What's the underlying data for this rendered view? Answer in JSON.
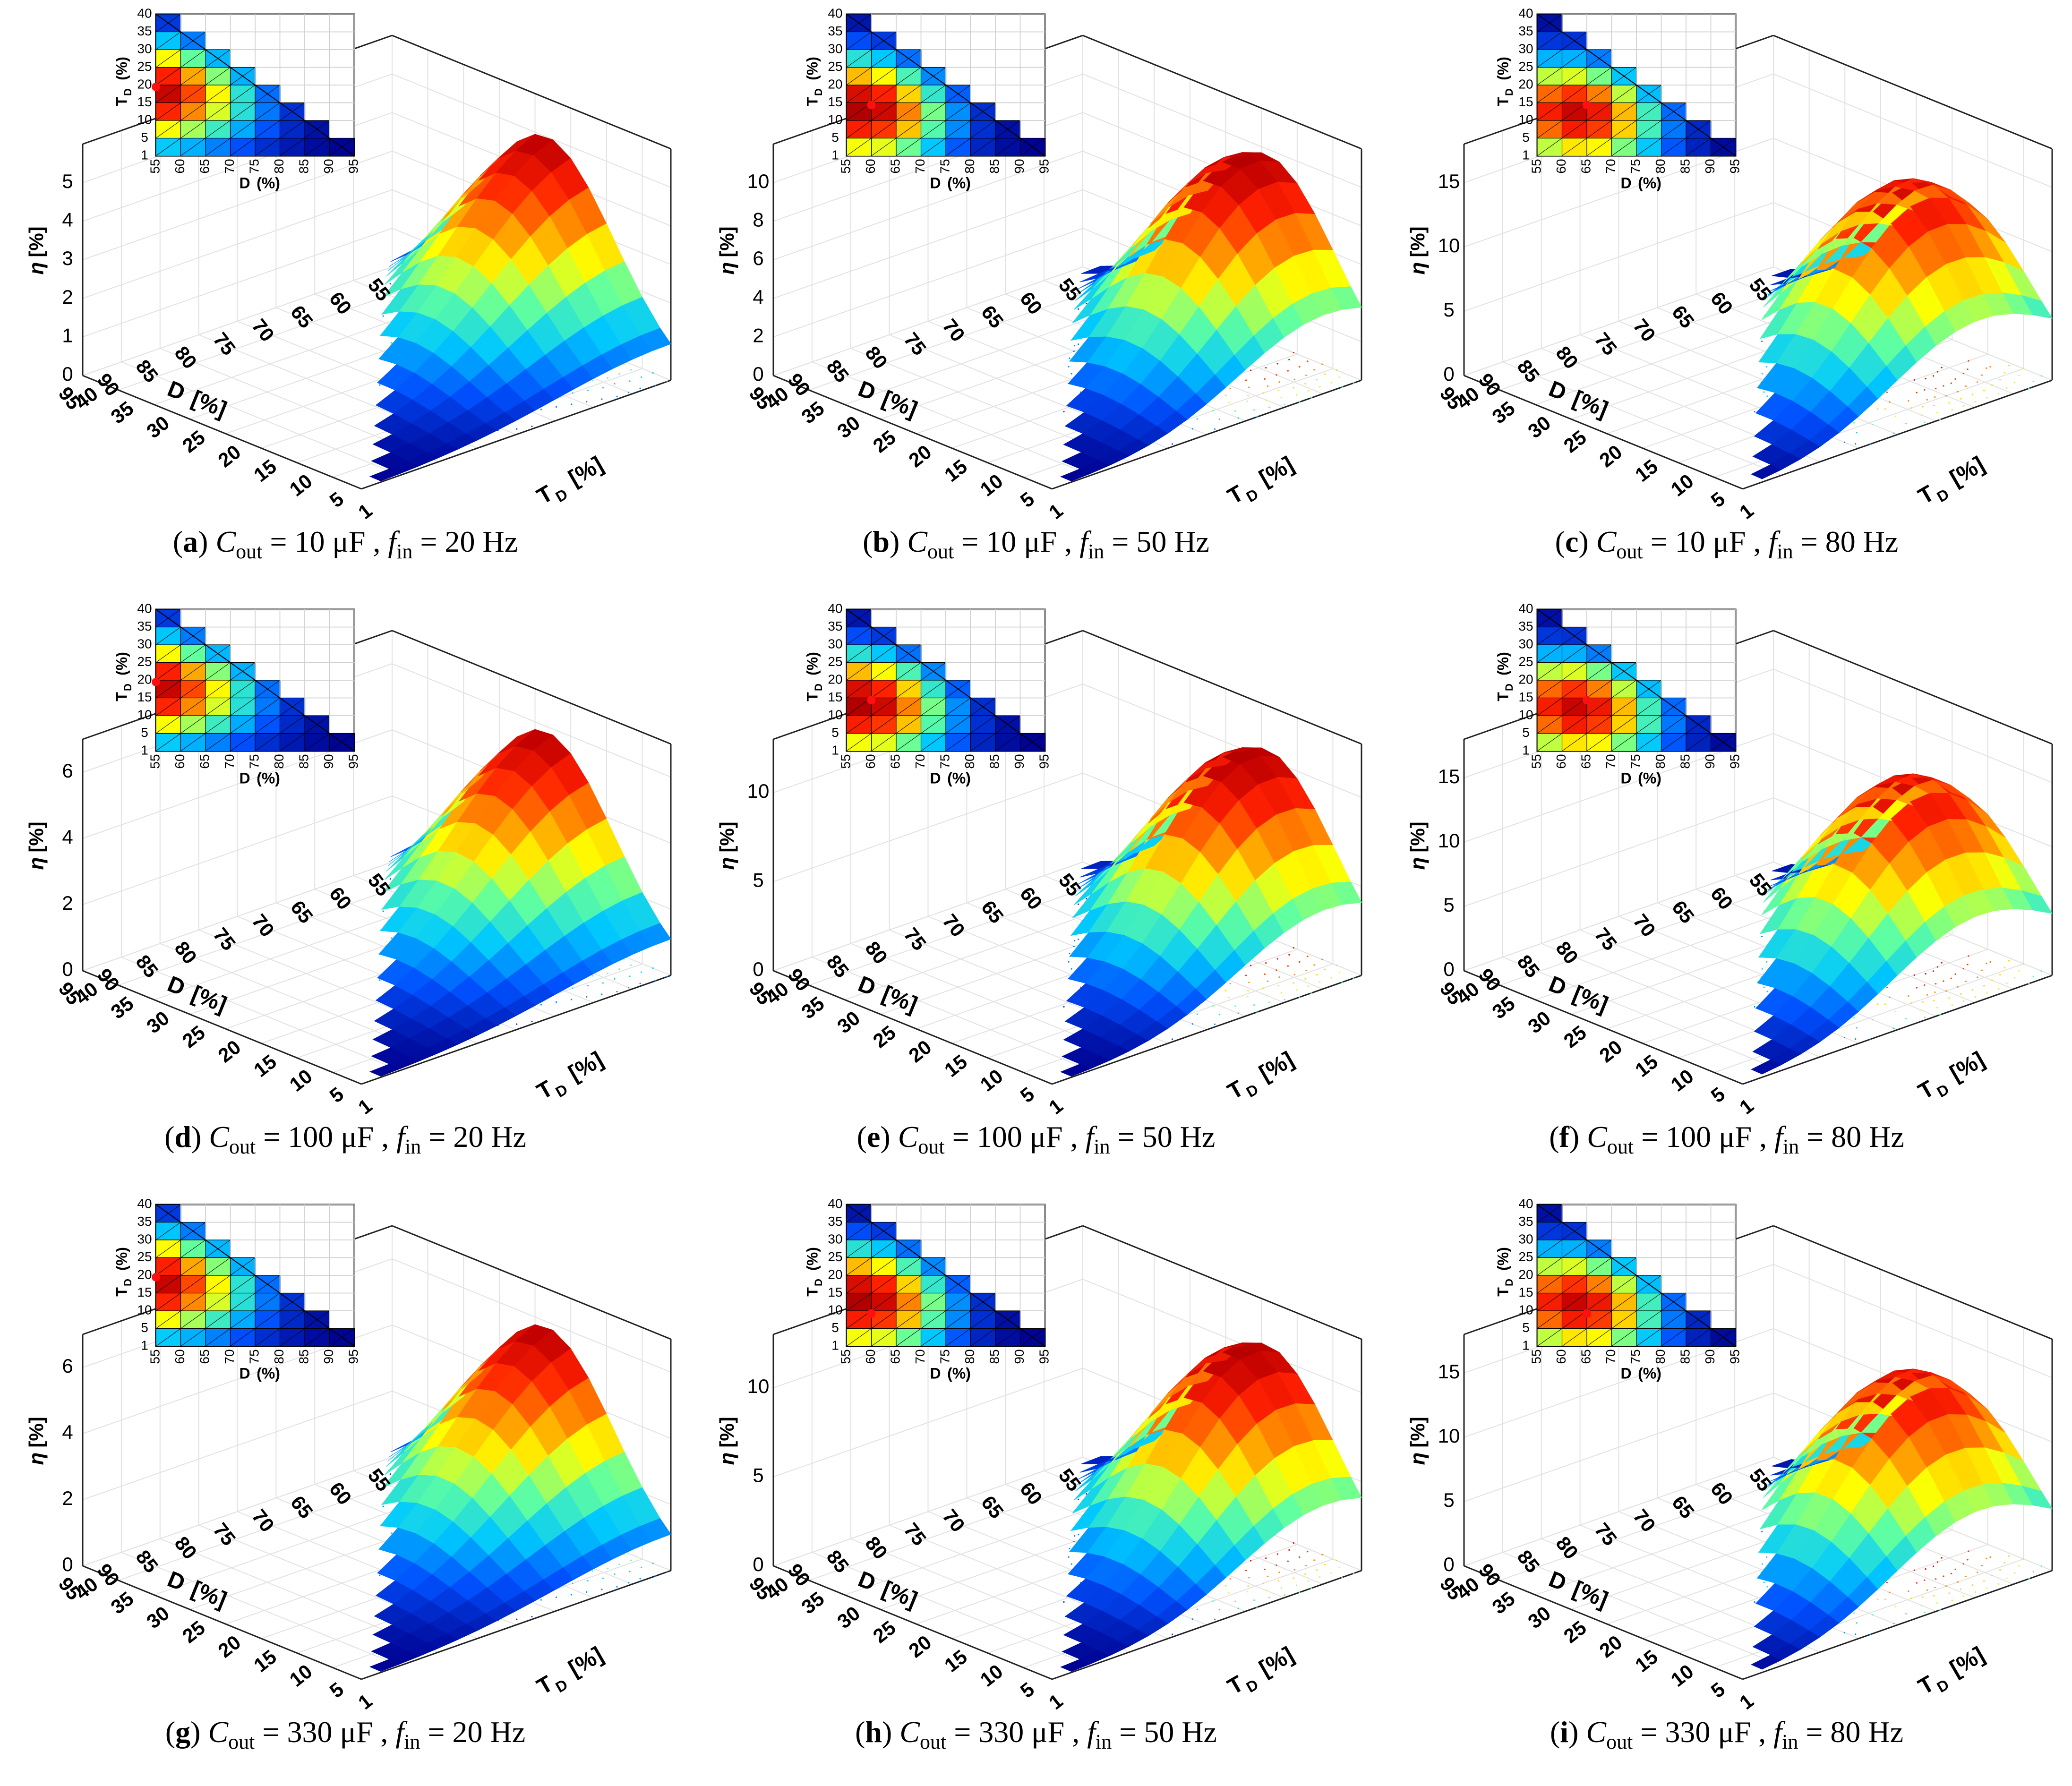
{
  "figure": {
    "common": {
      "x_axis_label": "D",
      "x_axis_unit": "[%]",
      "x_ticks": [
        95,
        90,
        85,
        80,
        75,
        70,
        65,
        60,
        55
      ],
      "y_axis_label": "T",
      "y_axis_sub": "D",
      "y_axis_unit": "[%]",
      "y_ticks": [
        40,
        35,
        30,
        25,
        20,
        15,
        10,
        5,
        1
      ],
      "z_axis_label": "η",
      "z_axis_unit": "[%]",
      "inset_x_label": "D",
      "inset_x_unit": "(%)",
      "inset_y_label": "T",
      "inset_y_sub": "D",
      "inset_y_unit": "(%)",
      "inset_x_ticks": [
        55,
        60,
        65,
        70,
        75,
        80,
        85,
        90,
        95
      ],
      "inset_y_ticks": [
        40,
        35,
        30,
        25,
        20,
        15,
        10,
        5,
        1
      ],
      "colormap": [
        "#00008f",
        "#0050ff",
        "#00c8ff",
        "#60ffa0",
        "#ffff00",
        "#ff9000",
        "#ff2000",
        "#c00000",
        "#800000"
      ],
      "marker_color": "#ff1010"
    }
  },
  "chart_data": [
    {
      "id": "a",
      "type": "surface3d",
      "letter": "a",
      "cout": "10 μF",
      "fin": "20 Hz",
      "zlim": [
        0,
        6
      ],
      "zticks": [
        0,
        1,
        2,
        3,
        4,
        5
      ],
      "optimum": {
        "D": 55,
        "TD": 20
      }
    },
    {
      "id": "b",
      "type": "surface3d",
      "letter": "b",
      "cout": "10 μF",
      "fin": "50 Hz",
      "zlim": [
        0,
        12
      ],
      "zticks": [
        0,
        2,
        4,
        6,
        8,
        10
      ],
      "optimum": {
        "D": 60,
        "TD": 15
      }
    },
    {
      "id": "c",
      "type": "surface3d",
      "letter": "c",
      "cout": "10 μF",
      "fin": "80 Hz",
      "zlim": [
        0,
        18
      ],
      "zticks": [
        0,
        5,
        10,
        15
      ],
      "optimum": {
        "D": 65,
        "TD": 15
      }
    },
    {
      "id": "d",
      "type": "surface3d",
      "letter": "d",
      "cout": "100 μF",
      "fin": "20 Hz",
      "zlim": [
        0,
        7
      ],
      "zticks": [
        0,
        2,
        4,
        6
      ],
      "optimum": {
        "D": 55,
        "TD": 20
      }
    },
    {
      "id": "e",
      "type": "surface3d",
      "letter": "e",
      "cout": "100 μF",
      "fin": "50 Hz",
      "zlim": [
        0,
        13
      ],
      "zticks": [
        0,
        5,
        10
      ],
      "optimum": {
        "D": 60,
        "TD": 15
      }
    },
    {
      "id": "f",
      "type": "surface3d",
      "letter": "f",
      "cout": "100 μF",
      "fin": "80 Hz",
      "zlim": [
        0,
        18
      ],
      "zticks": [
        0,
        5,
        10,
        15
      ],
      "optimum": {
        "D": 65,
        "TD": 15
      }
    },
    {
      "id": "g",
      "type": "surface3d",
      "letter": "g",
      "cout": "330 μF",
      "fin": "20 Hz",
      "zlim": [
        0,
        7
      ],
      "zticks": [
        0,
        2,
        4,
        6
      ],
      "optimum": {
        "D": 55,
        "TD": 20
      }
    },
    {
      "id": "h",
      "type": "surface3d",
      "letter": "h",
      "cout": "330 μF",
      "fin": "50 Hz",
      "zlim": [
        0,
        13
      ],
      "zticks": [
        0,
        5,
        10
      ],
      "optimum": {
        "D": 60,
        "TD": 10
      }
    },
    {
      "id": "i",
      "type": "surface3d",
      "letter": "i",
      "cout": "330 μF",
      "fin": "80 Hz",
      "zlim": [
        0,
        18
      ],
      "zticks": [
        0,
        5,
        10,
        15
      ],
      "optimum": {
        "D": 65,
        "TD": 10
      }
    }
  ]
}
